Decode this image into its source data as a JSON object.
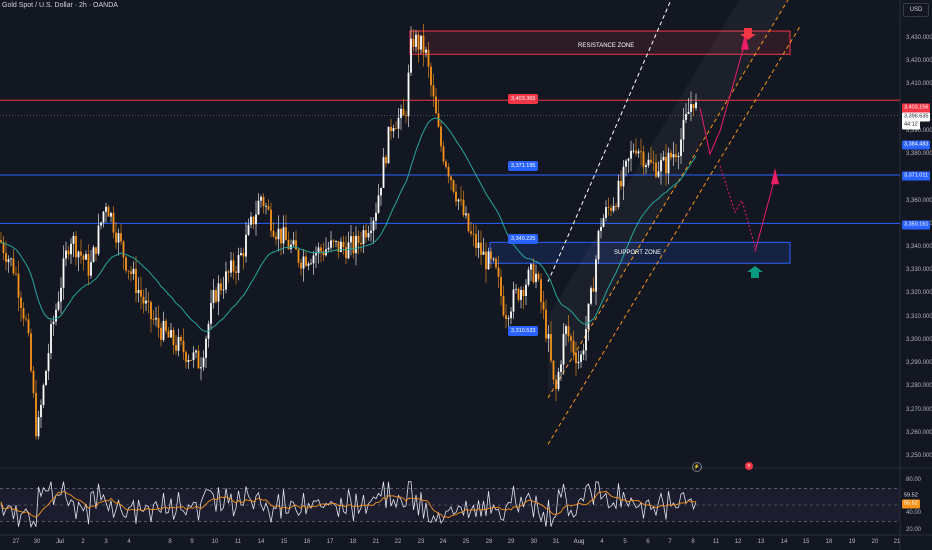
{
  "header": {
    "title": "Gold Spot / U.S. Dollar · 2h · OANDA"
  },
  "currency": "USD",
  "price_axis": {
    "ticks": [
      "3,430.000",
      "3,420.000",
      "3,410.000",
      "3,390.000",
      "3,380.000",
      "3,360.000",
      "3,350.000",
      "3,340.000",
      "3,330.000",
      "3,320.000",
      "3,310.000",
      "3,300.000",
      "3,290.000",
      "3,280.000",
      "3,270.000",
      "3,260.000",
      "3,250.000"
    ],
    "tick_values": [
      3430,
      3420,
      3410,
      3390,
      3380,
      3360,
      3350,
      3340,
      3330,
      3320,
      3310,
      3300,
      3290,
      3280,
      3270,
      3260,
      3250
    ]
  },
  "rsi_axis": {
    "ticks": [
      "80.00",
      "40.00",
      "20.00"
    ],
    "tick_values": [
      80,
      40,
      20
    ]
  },
  "date_axis": {
    "labels": [
      "27",
      "30",
      "Jul",
      "2",
      "3",
      "4",
      "8",
      "9",
      "10",
      "11",
      "14",
      "15",
      "16",
      "17",
      "18",
      "21",
      "22",
      "23",
      "24",
      "25",
      "28",
      "29",
      "30",
      "31",
      "Aug",
      "4",
      "5",
      "6",
      "7",
      "8",
      "11",
      "12",
      "13",
      "14",
      "15",
      "18",
      "19",
      "20",
      "21"
    ]
  },
  "price_tags": {
    "resistance_level": {
      "text": "3,403.156",
      "value": 3403.156,
      "color": "#f23645"
    },
    "current_price": {
      "text": "3,396.635",
      "value": 3396.635,
      "color": "#ffffff"
    },
    "countdown": {
      "text": "44:12"
    },
    "ema_value": {
      "text": "3,384.483",
      "value": 3384.483,
      "color": "#2962ff"
    },
    "level_371": {
      "text": "3,371.011",
      "value": 3371.011,
      "color": "#2962ff"
    },
    "level_350": {
      "text": "3,350.161",
      "value": 3350.161,
      "color": "#2962ff"
    }
  },
  "rsi_tags": {
    "rsi": {
      "text": "59.52",
      "value": 59.52
    },
    "rsi_ma": {
      "text": "55.52",
      "value": 55.52
    }
  },
  "line_labels": {
    "red_line": {
      "text": "3,403.365",
      "value": 3403.365,
      "color": "#f23645"
    },
    "blue_371": {
      "text": "3,371.195",
      "value": 3371.195,
      "color": "#2962ff"
    },
    "blue_340": {
      "text": "3,340.225",
      "value": 3340.225,
      "color": "#2962ff"
    },
    "blue_310": {
      "text": "3,310.533",
      "value": 3310.533,
      "color": "#2962ff"
    }
  },
  "zones": {
    "resistance": {
      "label": "RESISTANCE ZONE",
      "color": "#f23645"
    },
    "support": {
      "label": "SUPPORT ZONE",
      "color": "#2962ff"
    }
  },
  "colors": {
    "background": "#131722",
    "candle_up": "#ffffff",
    "candle_down": "#f7931a",
    "ema": "#26a69a",
    "rsi_line": "#e0e3eb",
    "rsi_ma": "#f7931a",
    "projection": "#e91e63",
    "channel_dashed": "#f7931a",
    "arrow_down": "#f23645",
    "arrow_up": "#089981"
  }
}
